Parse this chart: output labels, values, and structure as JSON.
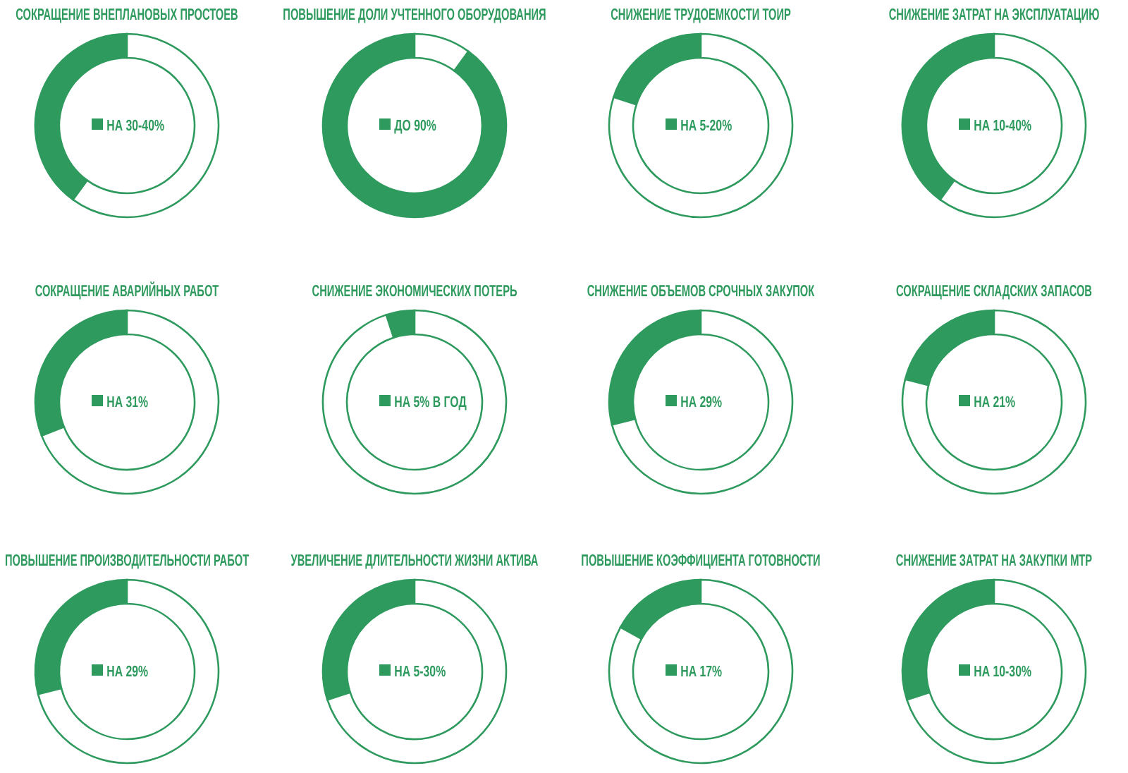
{
  "chart_data": [
    {
      "type": "donut",
      "title": "СОКРАЩЕНИЕ ВНЕПЛАНОВЫХ ПРОСТОЕВ",
      "categories": [
        "НА 30-40%",
        null
      ],
      "values": [
        40,
        60
      ],
      "colors": [
        "#2e9a5e",
        "#ffffff"
      ],
      "legend": "center"
    },
    {
      "type": "donut",
      "title": "ПОВЫШЕНИЕ ДОЛИ УЧТЕННОГО ОБОРУДОВАНИЯ",
      "categories": [
        "ДО 90%",
        null
      ],
      "values": [
        90,
        10
      ],
      "colors": [
        "#2e9a5e",
        "#ffffff"
      ],
      "legend": "center"
    },
    {
      "type": "donut",
      "title": "СНИЖЕНИЕ ТРУДОЕМКОСТИ ТОИР",
      "categories": [
        "НА 5-20%",
        null
      ],
      "values": [
        20,
        80
      ],
      "colors": [
        "#2e9a5e",
        "#ffffff"
      ],
      "legend": "center"
    },
    {
      "type": "donut",
      "title": "СНИЖЕНИЕ ЗАТРАТ НА ЭКСПЛУАТАЦИЮ",
      "categories": [
        "НА 10-40%",
        null
      ],
      "values": [
        40,
        60
      ],
      "colors": [
        "#2e9a5e",
        "#ffffff"
      ],
      "legend": "center"
    },
    {
      "type": "donut",
      "title": "СОКРАЩЕНИЕ АВАРИЙНЫХ РАБОТ",
      "categories": [
        "НА 31%",
        null
      ],
      "values": [
        31,
        69
      ],
      "colors": [
        "#2e9a5e",
        "#ffffff"
      ],
      "legend": "center"
    },
    {
      "type": "donut",
      "title": "СНИЖЕНИЕ ЭКОНОМИЧЕСКИХ ПОТЕРЬ",
      "categories": [
        "НА 5% В ГОД",
        null
      ],
      "values": [
        5,
        95
      ],
      "colors": [
        "#2e9a5e",
        "#ffffff"
      ],
      "legend": "center"
    },
    {
      "type": "donut",
      "title": "СНИЖЕНИЕ ОБЪЕМОВ СРОЧНЫХ ЗАКУПОК",
      "categories": [
        "НА 29%",
        null
      ],
      "values": [
        29,
        71
      ],
      "colors": [
        "#2e9a5e",
        "#ffffff"
      ],
      "legend": "center"
    },
    {
      "type": "donut",
      "title": "СОКРАЩЕНИЕ СКЛАДСКИХ ЗАПАСОВ",
      "categories": [
        "НА 21%",
        null
      ],
      "values": [
        21,
        79
      ],
      "colors": [
        "#2e9a5e",
        "#ffffff"
      ],
      "legend": "center"
    },
    {
      "type": "donut",
      "title": "ПОВЫШЕНИЕ ПРОИЗВОДИТЕЛЬНОСТИ РАБОТ",
      "categories": [
        "НА 29%",
        null
      ],
      "values": [
        29,
        71
      ],
      "colors": [
        "#2e9a5e",
        "#ffffff"
      ],
      "legend": "center"
    },
    {
      "type": "donut",
      "title": "УВЕЛИЧЕНИЕ ДЛИТЕЛЬНОСТИ ЖИЗНИ АКТИВА",
      "categories": [
        "НА 5-30%",
        null
      ],
      "values": [
        30,
        70
      ],
      "colors": [
        "#2e9a5e",
        "#ffffff"
      ],
      "legend": "center"
    },
    {
      "type": "donut",
      "title": "ПОВЫШЕНИЕ КОЭФФИЦИЕНТА ГОТОВНОСТИ",
      "categories": [
        "НА 17%",
        null
      ],
      "values": [
        17,
        83
      ],
      "colors": [
        "#2e9a5e",
        "#ffffff"
      ],
      "legend": "center"
    },
    {
      "type": "donut",
      "title": "СНИЖЕНИЕ ЗАТРАТ НА ЗАКУПКИ МТР",
      "categories": [
        "НА 10-30%",
        null
      ],
      "values": [
        30,
        70
      ],
      "colors": [
        "#2e9a5e",
        "#ffffff"
      ],
      "legend": "center"
    }
  ]
}
